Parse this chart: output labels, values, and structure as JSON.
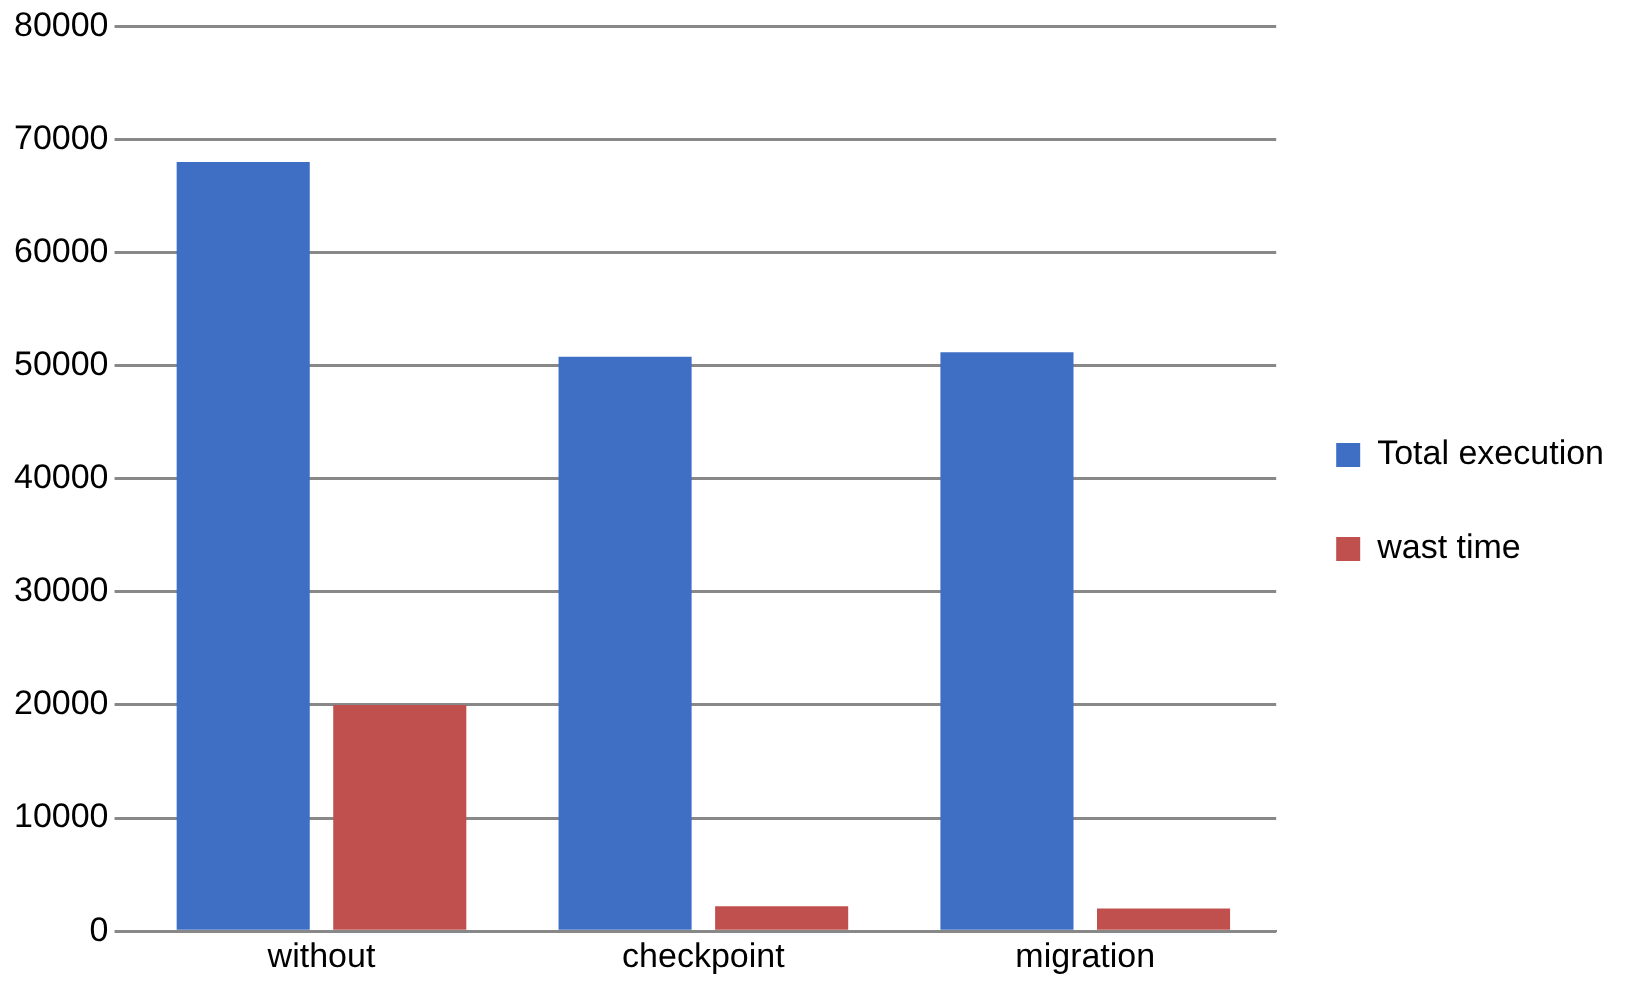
{
  "chart_data": {
    "type": "bar",
    "categories": [
      "without",
      "checkpoint",
      "migration"
    ],
    "series": [
      {
        "name": "Total execution",
        "color": "#3f6fc4",
        "values": [
          68000,
          50800,
          51200
        ]
      },
      {
        "name": "wast time",
        "color": "#c0504d",
        "values": [
          20000,
          2200,
          2000
        ]
      }
    ],
    "ylim": [
      0,
      80000
    ],
    "yticks": [
      0,
      10000,
      20000,
      30000,
      40000,
      50000,
      60000,
      70000,
      80000
    ],
    "grid": "y",
    "legend": "right"
  }
}
